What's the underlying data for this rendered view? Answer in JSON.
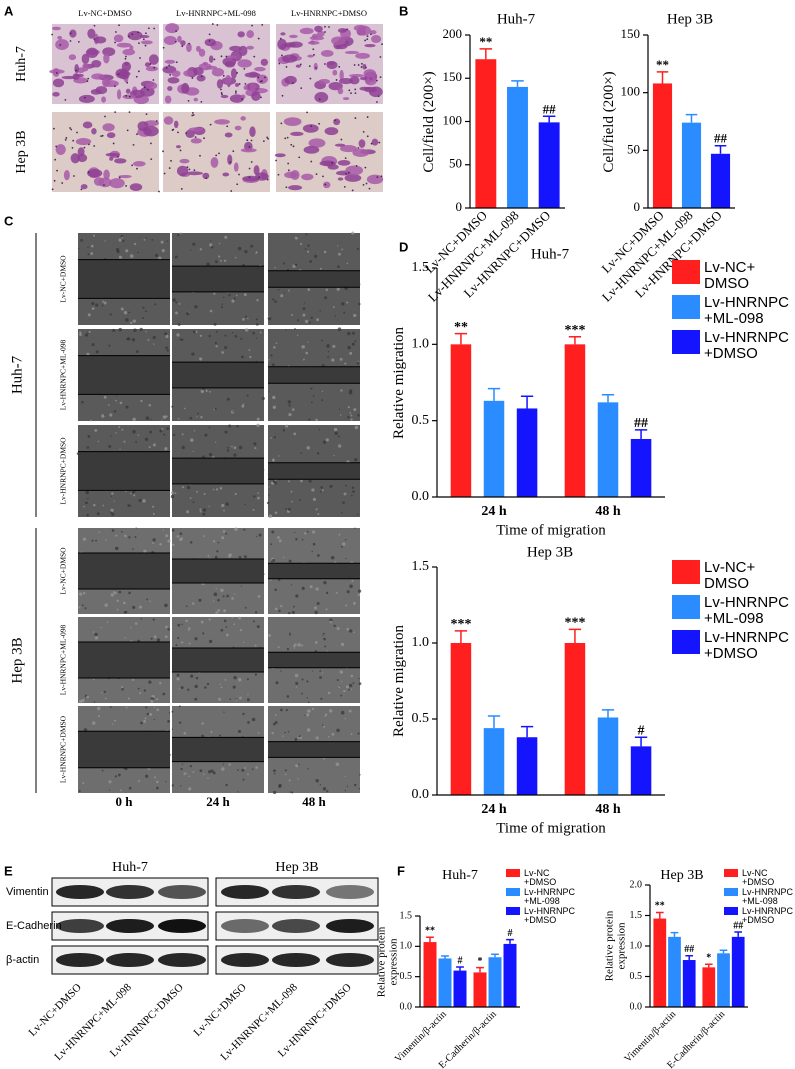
{
  "panel_labels": [
    "A",
    "B",
    "C",
    "D",
    "E",
    "F"
  ],
  "panel_a": {
    "columns": [
      "Lv-NC+DMSO",
      "Lv-HNRNPC+ML-098",
      "Lv-HNRNPC+DMSO"
    ],
    "rows": [
      "Huh-7",
      "Hep 3B"
    ]
  },
  "panel_c": {
    "groups": [
      "Huh-7",
      "Hep 3B"
    ],
    "row_labels": [
      "Lv-NC+DMSO",
      "Lv-HNRNPC+ML-098",
      "Lv-HNRNPC+DMSO"
    ],
    "columns": [
      "0 h",
      "24 h",
      "48 h"
    ]
  },
  "panel_e": {
    "groups": [
      "Huh-7",
      "Hep 3B"
    ],
    "proteins": [
      "Vimentin",
      "E-Cadherin",
      "β-actin"
    ],
    "lanes": [
      "Lv-NC+DMSO",
      "Lv-HNRNPC+ML-098",
      "Lv-HNRNPC+DMSO"
    ]
  },
  "chart_data": [
    {
      "type": "bar",
      "title": "Huh-7",
      "ylabel": "Cell/field (200×)",
      "categories": [
        "Lv-NC+DMSO",
        "Lv-HNRNPC+ML-098",
        "Lv-HNRNPC+DMSO"
      ],
      "values": [
        172,
        140,
        99
      ],
      "errors": [
        12,
        7,
        7
      ],
      "colors": [
        "#ff1f1f",
        "#2a8cff",
        "#1414ff"
      ],
      "annotations": [
        "**",
        null,
        "##"
      ],
      "ylim": [
        0,
        200
      ],
      "yticks": [
        0,
        50,
        100,
        150,
        200
      ]
    },
    {
      "type": "bar",
      "title": "Hep 3B",
      "ylabel": "Cell/field (200×)",
      "categories": [
        "Lv-NC+DMSO",
        "Lv-HNRNPC+ML-098",
        "Lv-HNRNPC+DMSO"
      ],
      "values": [
        108,
        74,
        47
      ],
      "errors": [
        10,
        7,
        7
      ],
      "colors": [
        "#ff1f1f",
        "#2a8cff",
        "#1414ff"
      ],
      "annotations": [
        "**",
        null,
        "##"
      ],
      "ylim": [
        0,
        150
      ],
      "yticks": [
        0,
        50,
        100,
        150
      ]
    },
    {
      "type": "grouped_bar",
      "title": "Huh-7",
      "xlabel": "Time of migration",
      "ylabel": "Relative migration",
      "categories": [
        "24 h",
        "48 h"
      ],
      "series": [
        {
          "name": "Lv-NC+\nDMSO",
          "color": "#ff1f1f",
          "values": [
            1.0,
            1.0
          ],
          "errors": [
            0.07,
            0.05
          ],
          "annotations": [
            "**",
            "***"
          ]
        },
        {
          "name": "Lv-HNRNPC\n+ML-098",
          "color": "#2a8cff",
          "values": [
            0.63,
            0.62
          ],
          "errors": [
            0.08,
            0.05
          ]
        },
        {
          "name": "Lv-HNRNPC\n+DMSO",
          "color": "#1414ff",
          "values": [
            0.58,
            0.38
          ],
          "errors": [
            0.08,
            0.06
          ],
          "annotations": [
            null,
            "##"
          ]
        }
      ],
      "ylim": [
        0,
        1.5
      ],
      "yticks": [
        {
          "value": 0,
          "label": "0.0"
        },
        0.5,
        {
          "value": 1,
          "label": "1.0"
        },
        1.5
      ]
    },
    {
      "type": "grouped_bar",
      "title": "Hep 3B",
      "xlabel": "Time of migration",
      "ylabel": "Relative migration",
      "categories": [
        "24 h",
        "48 h"
      ],
      "series": [
        {
          "name": "Lv-NC+\nDMSO",
          "color": "#ff1f1f",
          "values": [
            1.0,
            1.0
          ],
          "errors": [
            0.08,
            0.09
          ],
          "annotations": [
            "***",
            "***"
          ]
        },
        {
          "name": "Lv-HNRNPC\n+ML-098",
          "color": "#2a8cff",
          "values": [
            0.44,
            0.51
          ],
          "errors": [
            0.08,
            0.05
          ]
        },
        {
          "name": "Lv-HNRNPC\n+DMSO",
          "color": "#1414ff",
          "values": [
            0.38,
            0.32
          ],
          "errors": [
            0.07,
            0.06
          ],
          "annotations": [
            null,
            "#"
          ]
        }
      ],
      "ylim": [
        0,
        1.5
      ],
      "yticks": [
        {
          "value": 0,
          "label": "0.0"
        },
        0.5,
        {
          "value": 1,
          "label": "1.0"
        },
        1.5
      ]
    },
    {
      "type": "grouped_bar",
      "title": "Huh-7",
      "ylabel": "Relative protein\nexpression",
      "categories": [
        "Vimentin/β-actin",
        "E-Cadherin/β-actin"
      ],
      "series": [
        {
          "name": "Lv-NC\n+DMSO",
          "color": "#ff1f1f",
          "values": [
            1.07,
            0.57
          ],
          "errors": [
            0.08,
            0.08
          ],
          "annotations": [
            "**",
            "*"
          ]
        },
        {
          "name": "Lv-HNRNPC\n+ML-098",
          "color": "#2a8cff",
          "values": [
            0.8,
            0.82
          ],
          "errors": [
            0.04,
            0.05
          ]
        },
        {
          "name": "Lv-HNRNPC\n+DMSO",
          "color": "#1414ff",
          "values": [
            0.6,
            1.04
          ],
          "errors": [
            0.06,
            0.07
          ],
          "annotations": [
            "#",
            "#"
          ]
        }
      ],
      "ylim": [
        0,
        1.5
      ],
      "yticks": [
        {
          "value": 0,
          "label": "0.0"
        },
        0.5,
        {
          "value": 1,
          "label": "1.0"
        },
        1.5
      ]
    },
    {
      "type": "grouped_bar",
      "title": "Hep 3B",
      "ylabel": "Relative protein\nexpression",
      "categories": [
        "Vimentin/β-actin",
        "E-Cadherin/β-actin"
      ],
      "series": [
        {
          "name": "Lv-NC\n+DMSO",
          "color": "#ff1f1f",
          "values": [
            1.45,
            0.65
          ],
          "errors": [
            0.1,
            0.05
          ],
          "annotations": [
            "**",
            "*"
          ]
        },
        {
          "name": "Lv-HNRNPC\n+ML-098",
          "color": "#2a8cff",
          "values": [
            1.15,
            0.88
          ],
          "errors": [
            0.07,
            0.05
          ]
        },
        {
          "name": "Lv-HNRNPC\n+DMSO",
          "color": "#1414ff",
          "values": [
            0.77,
            1.15
          ],
          "errors": [
            0.07,
            0.08
          ],
          "annotations": [
            "##",
            "##"
          ]
        }
      ],
      "ylim": [
        0,
        2
      ],
      "yticks": [
        {
          "value": 0,
          "label": "0.0"
        },
        0.5,
        {
          "value": 1,
          "label": "1.0"
        },
        1.5,
        {
          "value": 2,
          "label": "2.0"
        }
      ]
    }
  ]
}
